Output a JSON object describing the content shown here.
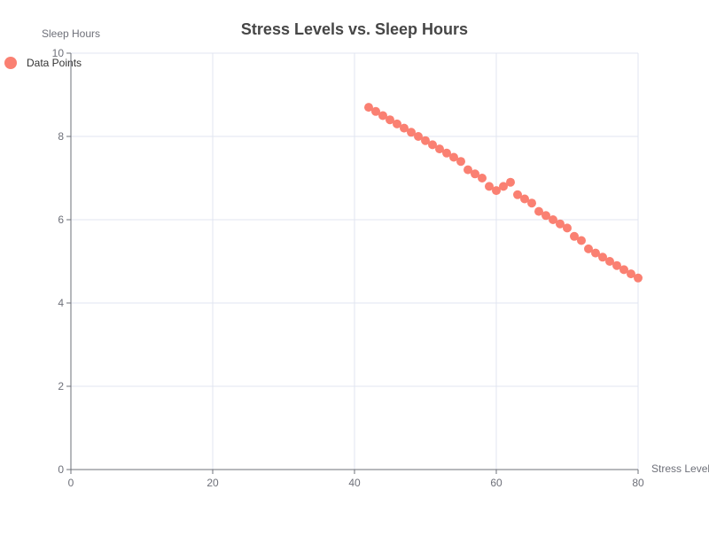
{
  "chart_data": {
    "type": "scatter",
    "title": "Stress Levels vs. Sleep Hours",
    "xlabel": "Stress Level",
    "ylabel": "Sleep Hours",
    "xlim": [
      0,
      80
    ],
    "ylim": [
      0,
      10
    ],
    "x_ticks": [
      0,
      20,
      40,
      60,
      80
    ],
    "y_ticks": [
      0,
      2,
      4,
      6,
      8,
      10
    ],
    "grid": true,
    "legend": {
      "position": "top-left",
      "entries": [
        "Data Points"
      ]
    },
    "series": [
      {
        "name": "Data Points",
        "color": "#fa8072",
        "points": [
          [
            42,
            8.7
          ],
          [
            43,
            8.6
          ],
          [
            44,
            8.5
          ],
          [
            45,
            8.4
          ],
          [
            46,
            8.3
          ],
          [
            47,
            8.2
          ],
          [
            48,
            8.1
          ],
          [
            49,
            8.0
          ],
          [
            50,
            7.9
          ],
          [
            51,
            7.8
          ],
          [
            52,
            7.7
          ],
          [
            53,
            7.6
          ],
          [
            54,
            7.5
          ],
          [
            55,
            7.4
          ],
          [
            56,
            7.2
          ],
          [
            57,
            7.1
          ],
          [
            58,
            7.0
          ],
          [
            59,
            6.8
          ],
          [
            60,
            6.7
          ],
          [
            61,
            6.8
          ],
          [
            62,
            6.9
          ],
          [
            63,
            6.6
          ],
          [
            64,
            6.5
          ],
          [
            65,
            6.4
          ],
          [
            66,
            6.2
          ],
          [
            67,
            6.1
          ],
          [
            68,
            6.0
          ],
          [
            69,
            5.9
          ],
          [
            70,
            5.8
          ],
          [
            71,
            5.6
          ],
          [
            72,
            5.5
          ],
          [
            73,
            5.3
          ],
          [
            74,
            5.2
          ],
          [
            75,
            5.1
          ],
          [
            76,
            5.0
          ],
          [
            77,
            4.9
          ],
          [
            78,
            4.8
          ],
          [
            79,
            4.7
          ],
          [
            80,
            4.6
          ]
        ]
      }
    ]
  },
  "colors": {
    "axis": "#6e7079",
    "grid": "#e0e6f1",
    "title": "#464646",
    "tick_label": "#6e7079",
    "legend_text": "#333333"
  }
}
